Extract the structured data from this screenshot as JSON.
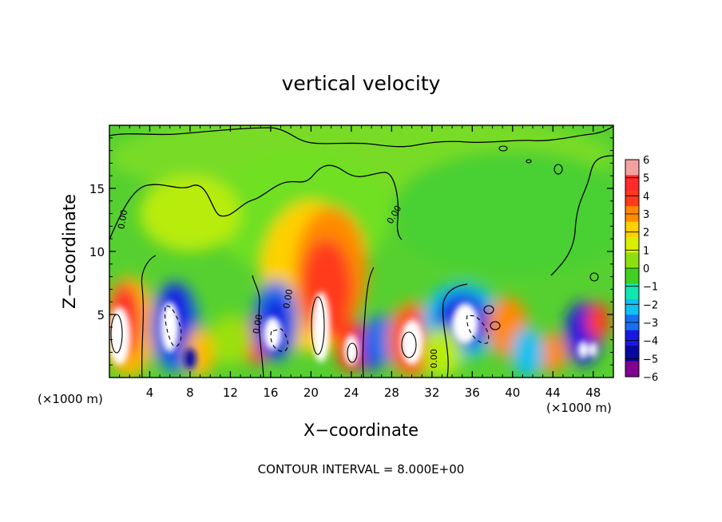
{
  "chart_data": {
    "type": "heatmap",
    "title": "vertical velocity",
    "xlabel": "X−coordinate",
    "ylabel": "Z−coordinate",
    "x_unit_left": "(×1000 m)",
    "x_unit_right": "(×1000 m)",
    "footer": "CONTOUR INTERVAL = 8.000E+00",
    "xlim": [
      0,
      50
    ],
    "ylim": [
      0,
      20
    ],
    "x_ticks": [
      4,
      8,
      12,
      16,
      20,
      24,
      28,
      32,
      36,
      40,
      44,
      48
    ],
    "x_tick_labels": [
      "4",
      "8",
      "12",
      "16",
      "20",
      "24",
      "28",
      "32",
      "36",
      "40",
      "44",
      "48"
    ],
    "y_ticks": [
      5,
      10,
      15
    ],
    "y_tick_labels": [
      "5",
      "10",
      "15"
    ],
    "colorbar": {
      "min": -6,
      "max": 6,
      "labels": [
        "6",
        "5",
        "4",
        "3",
        "2",
        "1",
        "0",
        "−1",
        "−2",
        "−3",
        "−4",
        "−5",
        "−6"
      ],
      "colors": [
        "#f4a0a0",
        "#ff2a2a",
        "#ff3a1a",
        "#ff8a00",
        "#ffd000",
        "#d8f000",
        "#8ce010",
        "#40d020",
        "#10e8b0",
        "#10c0f0",
        "#1870f0",
        "#1818e0",
        "#0808a0",
        "#800090"
      ]
    },
    "contour_labels": [
      "0.00",
      "0.00",
      "0.00",
      "0.00",
      "0.00"
    ]
  }
}
